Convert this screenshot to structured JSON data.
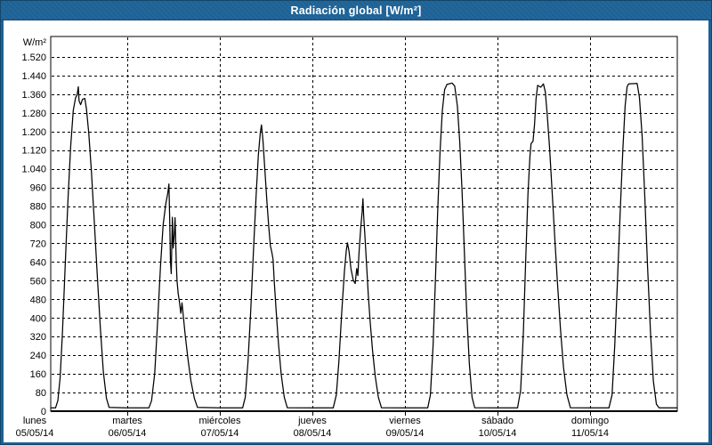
{
  "window": {
    "title": "Radiación global [W/m²]"
  },
  "colors": {
    "chrome": "#1E6296",
    "chrome_dark": "#134669",
    "plot_background": "#FFFFFF",
    "line_color": "#000000",
    "grid_color": "#000000",
    "title_text": "#FFFFFF"
  },
  "chart_data": {
    "type": "line",
    "title": "Radiación global [W/m²]",
    "xlabel": "",
    "ylabel": "W/m²",
    "ylim": [
      0,
      1600
    ],
    "y_tick_step": 80,
    "y_tick_labels": [
      "0",
      "80",
      "160",
      "240",
      "320",
      "400",
      "480",
      "560",
      "640",
      "720",
      "800",
      "880",
      "960",
      "1.040",
      "1.120",
      "1.200",
      "1.280",
      "1.360",
      "1.440",
      "1.520"
    ],
    "grid": true,
    "legend": "none",
    "x_domain_hours": [
      4.2,
      166.6
    ],
    "night_baseline": 14,
    "days": [
      {
        "name": "lunes",
        "date": "05/05/14",
        "points": [
          [
            4.2,
            14
          ],
          [
            5.4,
            14
          ],
          [
            6.0,
            45
          ],
          [
            6.6,
            145
          ],
          [
            7.2,
            340
          ],
          [
            7.9,
            620
          ],
          [
            8.6,
            900
          ],
          [
            9.3,
            1130
          ],
          [
            10.0,
            1290
          ],
          [
            10.6,
            1345
          ],
          [
            11.0,
            1358
          ],
          [
            11.3,
            1392
          ],
          [
            11.5,
            1332
          ],
          [
            11.9,
            1315
          ],
          [
            12.4,
            1338
          ],
          [
            13.0,
            1342
          ],
          [
            13.4,
            1298
          ],
          [
            14.0,
            1195
          ],
          [
            14.7,
            1030
          ],
          [
            15.4,
            830
          ],
          [
            16.2,
            590
          ],
          [
            17.0,
            360
          ],
          [
            17.8,
            170
          ],
          [
            18.6,
            55
          ],
          [
            19.3,
            16
          ],
          [
            24,
            14
          ]
        ]
      },
      {
        "name": "martes",
        "date": "06/05/14",
        "points": [
          [
            0,
            14
          ],
          [
            5.6,
            14
          ],
          [
            6.3,
            45
          ],
          [
            7.1,
            160
          ],
          [
            7.9,
            390
          ],
          [
            8.6,
            620
          ],
          [
            9.3,
            800
          ],
          [
            10.0,
            890
          ],
          [
            10.5,
            935
          ],
          [
            10.8,
            975
          ],
          [
            11.0,
            820
          ],
          [
            11.2,
            645
          ],
          [
            11.4,
            590
          ],
          [
            11.7,
            832
          ],
          [
            11.9,
            700
          ],
          [
            12.2,
            762
          ],
          [
            12.4,
            830
          ],
          [
            12.7,
            645
          ],
          [
            12.9,
            560
          ],
          [
            13.2,
            505
          ],
          [
            13.5,
            472
          ],
          [
            13.9,
            420
          ],
          [
            14.2,
            465
          ],
          [
            14.5,
            415
          ],
          [
            15.0,
            330
          ],
          [
            15.7,
            230
          ],
          [
            16.5,
            130
          ],
          [
            17.4,
            55
          ],
          [
            18.2,
            16
          ],
          [
            24,
            14
          ]
        ]
      },
      {
        "name": "miércoles",
        "date": "07/05/14",
        "points": [
          [
            0,
            14
          ],
          [
            5.9,
            14
          ],
          [
            6.6,
            60
          ],
          [
            7.3,
            210
          ],
          [
            8.0,
            430
          ],
          [
            8.7,
            680
          ],
          [
            9.4,
            920
          ],
          [
            10.0,
            1100
          ],
          [
            10.5,
            1195
          ],
          [
            10.8,
            1228
          ],
          [
            11.2,
            1160
          ],
          [
            11.7,
            1030
          ],
          [
            12.2,
            900
          ],
          [
            12.7,
            790
          ],
          [
            13.1,
            710
          ],
          [
            13.5,
            680
          ],
          [
            13.8,
            652
          ],
          [
            14.1,
            560
          ],
          [
            14.6,
            430
          ],
          [
            15.2,
            290
          ],
          [
            15.9,
            160
          ],
          [
            16.7,
            60
          ],
          [
            17.5,
            15
          ],
          [
            24,
            14
          ]
        ]
      },
      {
        "name": "jueves",
        "date": "08/05/14",
        "points": [
          [
            0,
            14
          ],
          [
            5.4,
            14
          ],
          [
            6.2,
            70
          ],
          [
            6.9,
            220
          ],
          [
            7.6,
            420
          ],
          [
            8.3,
            600
          ],
          [
            8.8,
            690
          ],
          [
            9.1,
            722
          ],
          [
            9.5,
            685
          ],
          [
            10.0,
            612
          ],
          [
            10.6,
            562
          ],
          [
            11.1,
            548
          ],
          [
            11.5,
            612
          ],
          [
            11.8,
            582
          ],
          [
            12.1,
            680
          ],
          [
            12.5,
            780
          ],
          [
            12.9,
            855
          ],
          [
            13.1,
            912
          ],
          [
            13.3,
            840
          ],
          [
            13.6,
            760
          ],
          [
            14.0,
            640
          ],
          [
            14.5,
            500
          ],
          [
            15.0,
            380
          ],
          [
            15.6,
            260
          ],
          [
            16.3,
            150
          ],
          [
            17.1,
            60
          ],
          [
            17.9,
            15
          ],
          [
            24,
            14
          ]
        ]
      },
      {
        "name": "viernes",
        "date": "09/05/14",
        "points": [
          [
            0,
            14
          ],
          [
            5.9,
            14
          ],
          [
            6.6,
            70
          ],
          [
            7.3,
            280
          ],
          [
            7.9,
            560
          ],
          [
            8.5,
            860
          ],
          [
            9.1,
            1110
          ],
          [
            9.7,
            1290
          ],
          [
            10.3,
            1380
          ],
          [
            10.9,
            1402
          ],
          [
            12.2,
            1408
          ],
          [
            12.9,
            1395
          ],
          [
            13.6,
            1310
          ],
          [
            14.2,
            1160
          ],
          [
            14.8,
            950
          ],
          [
            15.4,
            690
          ],
          [
            16.0,
            430
          ],
          [
            16.7,
            200
          ],
          [
            17.4,
            60
          ],
          [
            18.1,
            15
          ],
          [
            24,
            14
          ]
        ]
      },
      {
        "name": "sábado",
        "date": "10/05/14",
        "points": [
          [
            0,
            14
          ],
          [
            5.2,
            14
          ],
          [
            6.0,
            90
          ],
          [
            6.7,
            330
          ],
          [
            7.3,
            640
          ],
          [
            7.9,
            930
          ],
          [
            8.4,
            1090
          ],
          [
            8.7,
            1148
          ],
          [
            9.2,
            1158
          ],
          [
            9.6,
            1230
          ],
          [
            10.0,
            1340
          ],
          [
            10.4,
            1398
          ],
          [
            11.2,
            1390
          ],
          [
            11.9,
            1404
          ],
          [
            12.4,
            1370
          ],
          [
            12.9,
            1270
          ],
          [
            13.5,
            1130
          ],
          [
            14.1,
            960
          ],
          [
            14.8,
            760
          ],
          [
            15.5,
            560
          ],
          [
            16.3,
            360
          ],
          [
            17.1,
            190
          ],
          [
            18.0,
            70
          ],
          [
            18.9,
            15
          ],
          [
            24,
            14
          ]
        ]
      },
      {
        "name": "domingo",
        "date": "11/05/14",
        "points": [
          [
            0,
            14
          ],
          [
            4.9,
            14
          ],
          [
            5.7,
            70
          ],
          [
            6.4,
            280
          ],
          [
            7.1,
            560
          ],
          [
            7.8,
            850
          ],
          [
            8.5,
            1120
          ],
          [
            9.1,
            1310
          ],
          [
            9.6,
            1392
          ],
          [
            10.0,
            1404
          ],
          [
            12.2,
            1406
          ],
          [
            12.8,
            1345
          ],
          [
            13.5,
            1180
          ],
          [
            14.2,
            920
          ],
          [
            14.9,
            620
          ],
          [
            15.7,
            330
          ],
          [
            16.4,
            130
          ],
          [
            17.2,
            30
          ],
          [
            17.9,
            14
          ],
          [
            24,
            14
          ]
        ]
      }
    ]
  }
}
